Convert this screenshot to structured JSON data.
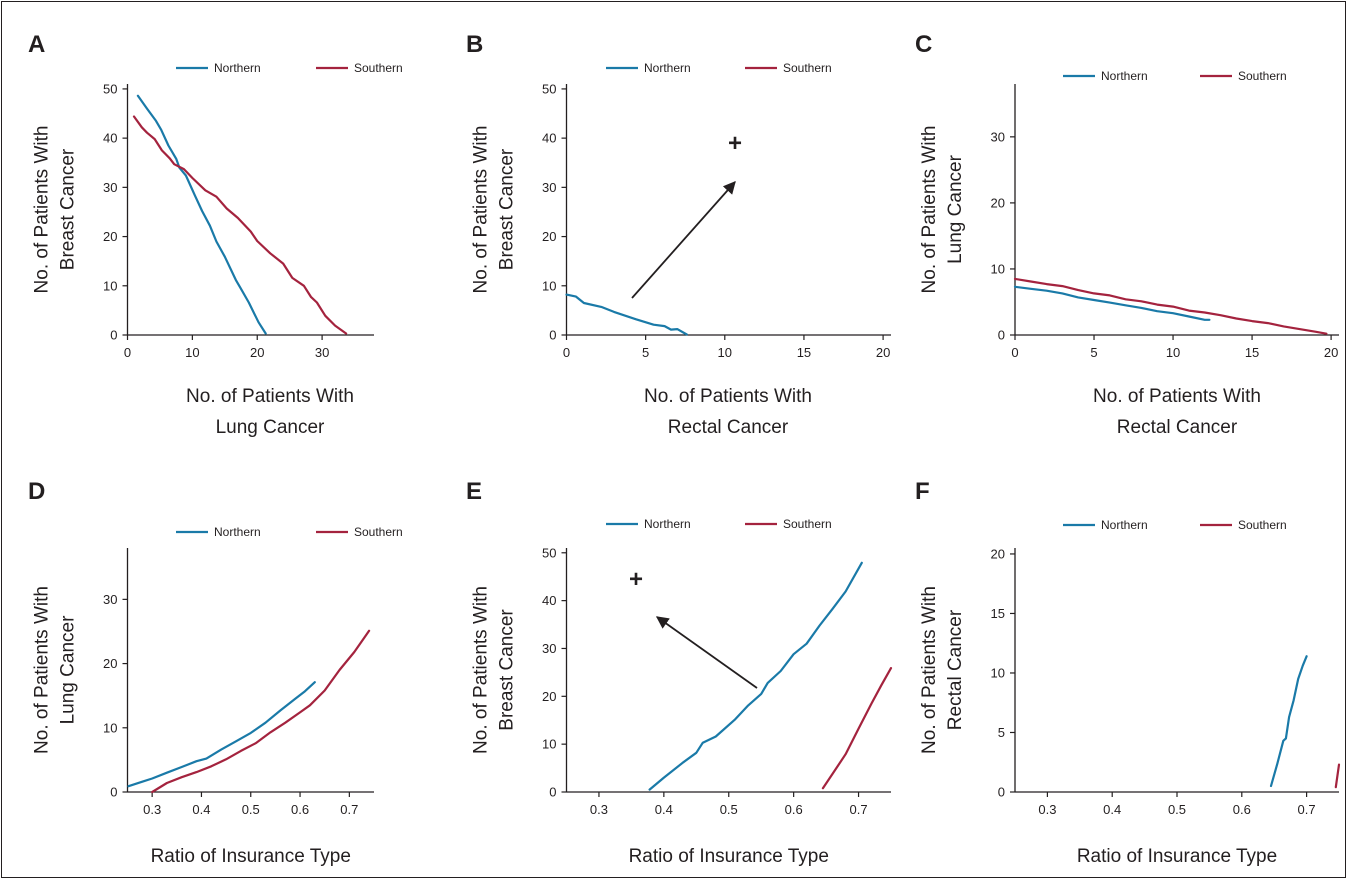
{
  "chart_data": [
    {
      "panel": "A",
      "type": "line",
      "xlabel": [
        "No. of Patients With",
        "Lung Cancer"
      ],
      "ylabel": [
        "No. of Patients With",
        "Breast Cancer"
      ],
      "xlim": [
        0,
        38
      ],
      "ylim": [
        0,
        51
      ],
      "xticks": [
        0,
        10,
        20,
        30
      ],
      "yticks": [
        0,
        10,
        20,
        30,
        40,
        50
      ],
      "legend": [
        "Northern",
        "Southern"
      ],
      "legend_position": "top",
      "series": [
        {
          "name": "Northern",
          "color": "#1a7aa8",
          "points": [
            [
              1.6,
              48.6
            ],
            [
              3,
              46
            ],
            [
              4.4,
              43.5
            ],
            [
              5.2,
              41.7
            ],
            [
              6.3,
              38.5
            ],
            [
              7.5,
              35.8
            ],
            [
              8,
              34
            ],
            [
              9,
              32.4
            ],
            [
              10.4,
              28.3
            ],
            [
              11.5,
              25.2
            ],
            [
              12.7,
              22.2
            ],
            [
              13.7,
              19
            ],
            [
              15,
              15.9
            ],
            [
              16.7,
              11.2
            ],
            [
              17.4,
              9.6
            ],
            [
              18.7,
              6.6
            ],
            [
              20.2,
              2.6
            ],
            [
              21.3,
              0.3
            ]
          ]
        },
        {
          "name": "Southern",
          "color": "#a4233e",
          "points": [
            [
              1,
              44.4
            ],
            [
              2.2,
              42.2
            ],
            [
              3,
              41.1
            ],
            [
              4.2,
              39.8
            ],
            [
              5.3,
              37.5
            ],
            [
              6.5,
              35.9
            ],
            [
              7.2,
              34.7
            ],
            [
              8.7,
              33.7
            ],
            [
              10,
              31.9
            ],
            [
              12,
              29.4
            ],
            [
              13.7,
              28.1
            ],
            [
              15.3,
              25.7
            ],
            [
              17,
              23.8
            ],
            [
              19,
              21
            ],
            [
              20,
              19.1
            ],
            [
              22,
              16.6
            ],
            [
              24,
              14.5
            ],
            [
              25.4,
              11.6
            ],
            [
              27.2,
              10
            ],
            [
              28.3,
              7.7
            ],
            [
              29.2,
              6.6
            ],
            [
              30.5,
              3.9
            ],
            [
              32,
              1.9
            ],
            [
              33.7,
              0.3
            ]
          ]
        }
      ]
    },
    {
      "panel": "B",
      "type": "line",
      "xlabel": [
        "No. of Patients With",
        "Rectal Cancer"
      ],
      "ylabel": [
        "No. of Patients With",
        "Breast Cancer"
      ],
      "xlim": [
        0,
        20.5
      ],
      "ylim": [
        0,
        51
      ],
      "xticks": [
        0,
        5,
        10,
        15,
        20
      ],
      "yticks": [
        0,
        10,
        20,
        30,
        40,
        50
      ],
      "legend": [
        "Northern",
        "Southern"
      ],
      "legend_position": "top",
      "annotation": "+",
      "series": [
        {
          "name": "Northern",
          "color": "#1a7aa8",
          "points": [
            [
              0,
              8.2
            ],
            [
              0.6,
              7.8
            ],
            [
              1.1,
              6.5
            ],
            [
              2.2,
              5.7
            ],
            [
              3,
              4.7
            ],
            [
              4.4,
              3.2
            ],
            [
              5.5,
              2.1
            ],
            [
              6.2,
              1.8
            ],
            [
              6.6,
              1.1
            ],
            [
              7,
              1.2
            ],
            [
              7.6,
              0.1
            ]
          ]
        },
        {
          "name": "Southern",
          "color": "#a4233e",
          "points": []
        }
      ]
    },
    {
      "panel": "C",
      "type": "line",
      "xlabel": [
        "No. of Patients With",
        "Rectal Cancer"
      ],
      "ylabel": [
        "No. of Patients With",
        "Lung Cancer"
      ],
      "xlim": [
        0,
        20.5
      ],
      "ylim": [
        0,
        38
      ],
      "xticks": [
        0,
        5,
        10,
        15,
        20
      ],
      "yticks": [
        0,
        10,
        20,
        30
      ],
      "legend": [
        "Northern",
        "Southern"
      ],
      "legend_position": "top",
      "series": [
        {
          "name": "Northern",
          "color": "#1a7aa8",
          "points": [
            [
              0,
              7.3
            ],
            [
              1,
              7
            ],
            [
              2,
              6.7
            ],
            [
              3,
              6.3
            ],
            [
              4,
              5.7
            ],
            [
              5,
              5.3
            ],
            [
              6,
              4.9
            ],
            [
              7,
              4.5
            ],
            [
              8,
              4.1
            ],
            [
              9,
              3.6
            ],
            [
              10,
              3.3
            ],
            [
              11,
              2.8
            ],
            [
              12,
              2.3
            ],
            [
              12.3,
              2.3
            ]
          ]
        },
        {
          "name": "Southern",
          "color": "#a4233e",
          "points": [
            [
              0,
              8.5
            ],
            [
              1,
              8.1
            ],
            [
              2,
              7.7
            ],
            [
              3,
              7.4
            ],
            [
              4,
              6.8
            ],
            [
              5,
              6.3
            ],
            [
              6,
              6
            ],
            [
              7,
              5.4
            ],
            [
              8,
              5.1
            ],
            [
              9,
              4.6
            ],
            [
              10,
              4.3
            ],
            [
              11,
              3.7
            ],
            [
              12,
              3.4
            ],
            [
              13,
              3
            ],
            [
              14,
              2.5
            ],
            [
              15,
              2.1
            ],
            [
              16,
              1.8
            ],
            [
              17,
              1.3
            ],
            [
              18,
              0.9
            ],
            [
              19,
              0.5
            ],
            [
              19.7,
              0.2
            ]
          ]
        }
      ]
    },
    {
      "panel": "D",
      "type": "line",
      "xlabel": [
        "Ratio of Insurance Type"
      ],
      "ylabel": [
        "No. of Patients With",
        "Lung Cancer"
      ],
      "xlim": [
        0.25,
        0.75
      ],
      "ylim": [
        0,
        38
      ],
      "xticks": [
        0.3,
        0.4,
        0.5,
        0.6,
        0.7
      ],
      "yticks": [
        0,
        10,
        20,
        30
      ],
      "legend": [
        "Northern",
        "Southern"
      ],
      "legend_position": "top",
      "series": [
        {
          "name": "Northern",
          "color": "#1a7aa8",
          "points": [
            [
              0.252,
              0.9
            ],
            [
              0.28,
              1.6
            ],
            [
              0.3,
              2.1
            ],
            [
              0.33,
              3
            ],
            [
              0.36,
              3.9
            ],
            [
              0.39,
              4.8
            ],
            [
              0.41,
              5.2
            ],
            [
              0.44,
              6.6
            ],
            [
              0.47,
              7.9
            ],
            [
              0.5,
              9.2
            ],
            [
              0.53,
              10.8
            ],
            [
              0.56,
              12.7
            ],
            [
              0.59,
              14.5
            ],
            [
              0.61,
              15.7
            ],
            [
              0.63,
              17.1
            ]
          ]
        },
        {
          "name": "Southern",
          "color": "#a4233e",
          "points": [
            [
              0.3,
              0
            ],
            [
              0.33,
              1.4
            ],
            [
              0.36,
              2.3
            ],
            [
              0.39,
              3.1
            ],
            [
              0.42,
              4
            ],
            [
              0.45,
              5.1
            ],
            [
              0.48,
              6.4
            ],
            [
              0.51,
              7.6
            ],
            [
              0.54,
              9.3
            ],
            [
              0.57,
              10.8
            ],
            [
              0.6,
              12.4
            ],
            [
              0.62,
              13.5
            ],
            [
              0.65,
              15.8
            ],
            [
              0.68,
              19
            ],
            [
              0.71,
              21.8
            ],
            [
              0.74,
              25.1
            ]
          ]
        }
      ]
    },
    {
      "panel": "E",
      "type": "line",
      "xlabel": [
        "Ratio of Insurance Type"
      ],
      "ylabel": [
        "No. of Patients With",
        "Breast Cancer"
      ],
      "xlim": [
        0.25,
        0.75
      ],
      "ylim": [
        0,
        51
      ],
      "xticks": [
        0.3,
        0.4,
        0.5,
        0.6,
        0.7
      ],
      "yticks": [
        0,
        10,
        20,
        30,
        40,
        50
      ],
      "legend": [
        "Northern",
        "Southern"
      ],
      "legend_position": "top",
      "annotation": "+",
      "series": [
        {
          "name": "Northern",
          "color": "#1a7aa8",
          "points": [
            [
              0.378,
              0.5
            ],
            [
              0.4,
              3
            ],
            [
              0.43,
              6.2
            ],
            [
              0.45,
              8.2
            ],
            [
              0.46,
              10.3
            ],
            [
              0.48,
              11.6
            ],
            [
              0.51,
              15.2
            ],
            [
              0.53,
              18.1
            ],
            [
              0.55,
              20.5
            ],
            [
              0.56,
              22.8
            ],
            [
              0.58,
              25.3
            ],
            [
              0.6,
              28.8
            ],
            [
              0.62,
              31
            ],
            [
              0.64,
              34.8
            ],
            [
              0.66,
              38.3
            ],
            [
              0.68,
              41.9
            ],
            [
              0.705,
              47.9
            ]
          ]
        },
        {
          "name": "Southern",
          "color": "#a4233e",
          "points": [
            [
              0.645,
              0.8
            ],
            [
              0.66,
              3.8
            ],
            [
              0.68,
              7.9
            ],
            [
              0.7,
              13.2
            ],
            [
              0.72,
              18.5
            ],
            [
              0.735,
              22.3
            ],
            [
              0.75,
              25.9
            ]
          ]
        }
      ]
    },
    {
      "panel": "F",
      "type": "line",
      "xlabel": [
        "Ratio of Insurance Type"
      ],
      "ylabel": [
        "No. of Patients With",
        "Rectal Cancer"
      ],
      "xlim": [
        0.25,
        0.75
      ],
      "ylim": [
        0,
        20.5
      ],
      "xticks": [
        0.3,
        0.4,
        0.5,
        0.6,
        0.7
      ],
      "yticks": [
        0,
        5,
        10,
        15,
        20
      ],
      "legend": [
        "Northern",
        "Southern"
      ],
      "legend_position": "top",
      "series": [
        {
          "name": "Northern",
          "color": "#1a7aa8",
          "points": [
            [
              0.645,
              0.5
            ],
            [
              0.655,
              2.4
            ],
            [
              0.664,
              4.3
            ],
            [
              0.668,
              4.5
            ],
            [
              0.673,
              6.3
            ],
            [
              0.68,
              7.7
            ],
            [
              0.687,
              9.5
            ],
            [
              0.694,
              10.6
            ],
            [
              0.7,
              11.4
            ]
          ]
        },
        {
          "name": "Southern",
          "color": "#a4233e",
          "points": [
            [
              0.745,
              0.4
            ],
            [
              0.75,
              2.3
            ]
          ]
        }
      ]
    }
  ]
}
